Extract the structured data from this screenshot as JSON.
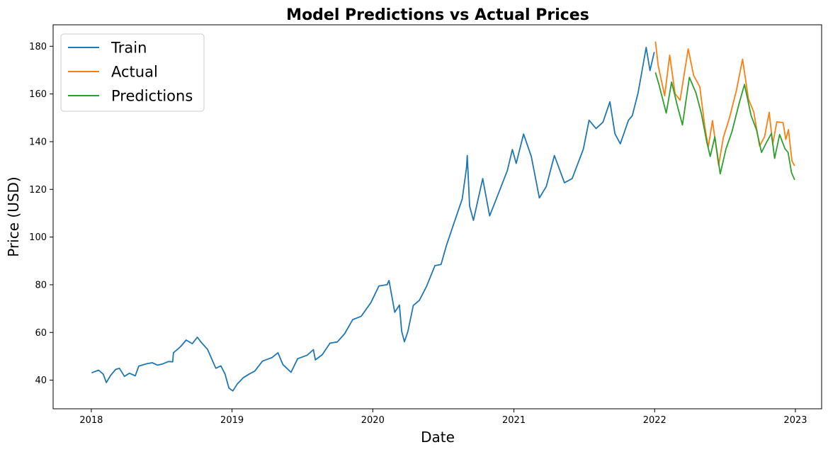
{
  "chart_data": {
    "type": "line",
    "title": "Model Predictions vs Actual Prices",
    "xlabel": "Date",
    "ylabel": "Price (USD)",
    "x_ticks": [
      "2018",
      "2019",
      "2020",
      "2021",
      "2022",
      "2023"
    ],
    "y_ticks": [
      40,
      60,
      80,
      100,
      120,
      140,
      160,
      180
    ],
    "xlim": [
      "2017-09-24",
      "2023-03-10"
    ],
    "ylim": [
      28,
      189
    ],
    "grid": false,
    "legend_position": "top-left",
    "series": [
      {
        "name": "Train",
        "color": "#1f77b4",
        "points": [
          [
            "2018-01-02",
            43.1
          ],
          [
            "2018-01-20",
            44.2
          ],
          [
            "2018-02-01",
            42.5
          ],
          [
            "2018-02-09",
            39.0
          ],
          [
            "2018-02-20",
            42.0
          ],
          [
            "2018-03-05",
            44.5
          ],
          [
            "2018-03-15",
            45.0
          ],
          [
            "2018-03-28",
            41.6
          ],
          [
            "2018-04-10",
            42.9
          ],
          [
            "2018-04-25",
            41.8
          ],
          [
            "2018-05-04",
            45.9
          ],
          [
            "2018-05-25",
            46.9
          ],
          [
            "2018-06-08",
            47.3
          ],
          [
            "2018-06-22",
            46.3
          ],
          [
            "2018-07-05",
            46.8
          ],
          [
            "2018-07-20",
            47.8
          ],
          [
            "2018-07-31",
            47.7
          ],
          [
            "2018-08-02",
            51.5
          ],
          [
            "2018-08-20",
            54.0
          ],
          [
            "2018-09-04",
            56.8
          ],
          [
            "2018-09-20",
            55.3
          ],
          [
            "2018-10-03",
            58.0
          ],
          [
            "2018-10-15",
            55.5
          ],
          [
            "2018-10-29",
            53.0
          ],
          [
            "2018-11-05",
            50.5
          ],
          [
            "2018-11-20",
            45.0
          ],
          [
            "2018-12-03",
            46.0
          ],
          [
            "2018-12-14",
            42.5
          ],
          [
            "2018-12-24",
            36.7
          ],
          [
            "2019-01-03",
            35.5
          ],
          [
            "2019-01-15",
            38.5
          ],
          [
            "2019-01-30",
            41.0
          ],
          [
            "2019-02-15",
            42.6
          ],
          [
            "2019-03-01",
            43.8
          ],
          [
            "2019-03-21",
            48.0
          ],
          [
            "2019-04-15",
            49.5
          ],
          [
            "2019-04-30",
            51.5
          ],
          [
            "2019-05-13",
            46.5
          ],
          [
            "2019-06-03",
            43.3
          ],
          [
            "2019-06-20",
            49.0
          ],
          [
            "2019-07-15",
            50.5
          ],
          [
            "2019-07-31",
            52.8
          ],
          [
            "2019-08-05",
            48.5
          ],
          [
            "2019-08-23",
            50.7
          ],
          [
            "2019-09-12",
            55.5
          ],
          [
            "2019-10-01",
            56.0
          ],
          [
            "2019-10-20",
            59.5
          ],
          [
            "2019-11-10",
            65.4
          ],
          [
            "2019-12-02",
            66.8
          ],
          [
            "2019-12-27",
            72.5
          ],
          [
            "2020-01-17",
            79.5
          ],
          [
            "2020-02-07",
            80.0
          ],
          [
            "2020-02-12",
            81.8
          ],
          [
            "2020-02-27",
            68.5
          ],
          [
            "2020-03-10",
            71.5
          ],
          [
            "2020-03-16",
            60.5
          ],
          [
            "2020-03-23",
            56.1
          ],
          [
            "2020-04-01",
            60.5
          ],
          [
            "2020-04-15",
            71.3
          ],
          [
            "2020-05-01",
            73.5
          ],
          [
            "2020-05-20",
            79.5
          ],
          [
            "2020-06-10",
            88.0
          ],
          [
            "2020-06-26",
            88.5
          ],
          [
            "2020-07-10",
            96.5
          ],
          [
            "2020-07-31",
            106.5
          ],
          [
            "2020-08-20",
            116.0
          ],
          [
            "2020-08-31",
            129.0
          ],
          [
            "2020-09-02",
            134.2
          ],
          [
            "2020-09-08",
            113.0
          ],
          [
            "2020-09-18",
            107.0
          ],
          [
            "2020-10-12",
            124.5
          ],
          [
            "2020-10-30",
            108.9
          ],
          [
            "2020-11-20",
            117.5
          ],
          [
            "2020-12-15",
            127.9
          ],
          [
            "2020-12-28",
            136.7
          ],
          [
            "2021-01-07",
            130.9
          ],
          [
            "2021-01-26",
            143.2
          ],
          [
            "2021-02-15",
            133.8
          ],
          [
            "2021-03-08",
            116.4
          ],
          [
            "2021-03-26",
            121.2
          ],
          [
            "2021-04-16",
            134.2
          ],
          [
            "2021-05-12",
            122.8
          ],
          [
            "2021-06-01",
            124.5
          ],
          [
            "2021-06-30",
            136.9
          ],
          [
            "2021-07-15",
            149.0
          ],
          [
            "2021-08-02",
            145.5
          ],
          [
            "2021-08-20",
            148.2
          ],
          [
            "2021-09-07",
            156.7
          ],
          [
            "2021-09-20",
            143.3
          ],
          [
            "2021-10-04",
            139.1
          ],
          [
            "2021-10-25",
            149.0
          ],
          [
            "2021-11-04",
            150.9
          ],
          [
            "2021-11-19",
            160.5
          ],
          [
            "2021-12-10",
            179.5
          ],
          [
            "2021-12-20",
            169.8
          ],
          [
            "2021-12-31",
            177.6
          ]
        ]
      },
      {
        "name": "Actual",
        "color": "#ff7f0e",
        "points": [
          [
            "2022-01-03",
            182.0
          ],
          [
            "2022-01-10",
            172.0
          ],
          [
            "2022-01-27",
            159.2
          ],
          [
            "2022-02-09",
            176.3
          ],
          [
            "2022-02-23",
            160.1
          ],
          [
            "2022-03-08",
            157.4
          ],
          [
            "2022-03-29",
            178.9
          ],
          [
            "2022-04-12",
            167.8
          ],
          [
            "2022-04-28",
            163.0
          ],
          [
            "2022-05-11",
            146.5
          ],
          [
            "2022-05-20",
            137.6
          ],
          [
            "2022-05-31",
            148.8
          ],
          [
            "2022-06-16",
            130.1
          ],
          [
            "2022-06-28",
            141.7
          ],
          [
            "2022-07-14",
            150.0
          ],
          [
            "2022-08-01",
            161.5
          ],
          [
            "2022-08-17",
            174.6
          ],
          [
            "2022-09-01",
            158.0
          ],
          [
            "2022-09-15",
            152.4
          ],
          [
            "2022-09-30",
            138.2
          ],
          [
            "2022-10-13",
            142.0
          ],
          [
            "2022-10-25",
            152.3
          ],
          [
            "2022-11-03",
            138.9
          ],
          [
            "2022-11-14",
            148.3
          ],
          [
            "2022-11-30",
            148.0
          ],
          [
            "2022-12-07",
            140.9
          ],
          [
            "2022-12-14",
            145.0
          ],
          [
            "2022-12-23",
            131.9
          ],
          [
            "2022-12-30",
            129.9
          ]
        ]
      },
      {
        "name": "Predictions",
        "color": "#2ca02c",
        "points": [
          [
            "2022-01-03",
            169.0
          ],
          [
            "2022-01-12",
            164.0
          ],
          [
            "2022-01-31",
            152.0
          ],
          [
            "2022-02-14",
            165.0
          ],
          [
            "2022-03-01",
            155.0
          ],
          [
            "2022-03-14",
            147.0
          ],
          [
            "2022-04-01",
            167.0
          ],
          [
            "2022-04-18",
            160.5
          ],
          [
            "2022-05-02",
            152.0
          ],
          [
            "2022-05-16",
            140.0
          ],
          [
            "2022-05-25",
            133.8
          ],
          [
            "2022-06-06",
            142.0
          ],
          [
            "2022-06-20",
            126.5
          ],
          [
            "2022-07-05",
            137.0
          ],
          [
            "2022-07-20",
            144.0
          ],
          [
            "2022-08-08",
            156.0
          ],
          [
            "2022-08-22",
            164.0
          ],
          [
            "2022-09-08",
            151.0
          ],
          [
            "2022-09-22",
            145.0
          ],
          [
            "2022-10-05",
            135.5
          ],
          [
            "2022-10-19",
            140.0
          ],
          [
            "2022-10-31",
            143.5
          ],
          [
            "2022-11-08",
            133.0
          ],
          [
            "2022-11-21",
            143.0
          ],
          [
            "2022-12-05",
            137.0
          ],
          [
            "2022-12-13",
            135.5
          ],
          [
            "2022-12-22",
            127.0
          ],
          [
            "2022-12-30",
            124.0
          ]
        ]
      }
    ]
  }
}
